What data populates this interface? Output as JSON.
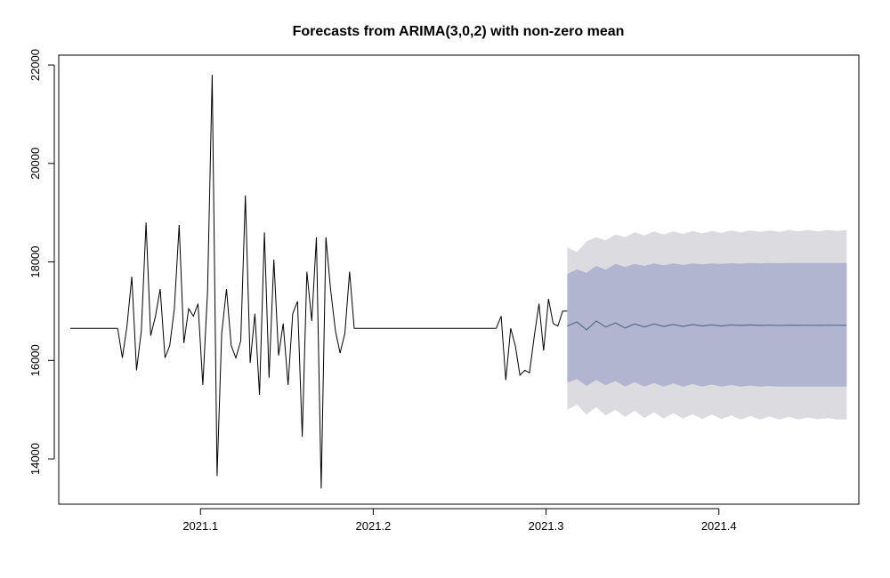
{
  "chart_data": {
    "type": "line",
    "title": "Forecasts from ARIMA(3,0,2) with non-zero mean",
    "xlabel": "",
    "ylabel": "",
    "xlim": [
      2021.018,
      2021.481
    ],
    "ylim": [
      13080,
      22200
    ],
    "x_ticks": [
      2021.1,
      2021.2,
      2021.3,
      2021.4
    ],
    "x_tick_labels": [
      "2021.1",
      "2021.2",
      "2021.3",
      "2021.4"
    ],
    "y_ticks": [
      14000,
      16000,
      18000,
      20000,
      22000
    ],
    "y_tick_labels": [
      "14000",
      "16000",
      "18000",
      "20000",
      "22000"
    ],
    "grid": false,
    "legend": "none",
    "colors": {
      "observed": "#000000",
      "forecast_mean": "#5b6c8f",
      "band_80": "#b1b5cf",
      "band_95": "#dcdce0",
      "frame": "#000000"
    },
    "series": [
      {
        "role": "observed",
        "segments": [
          {
            "x": [
              2021.0247,
              2021.0274,
              2021.0301,
              2021.0329,
              2021.0356,
              2021.0384,
              2021.0411,
              2021.0438,
              2021.0466,
              2021.0493,
              2021.0521,
              2021.0548,
              2021.0575,
              2021.0603,
              2021.063,
              2021.0658,
              2021.0685,
              2021.0712,
              2021.074,
              2021.0767,
              2021.0795,
              2021.0822,
              2021.0849,
              2021.0877,
              2021.0904,
              2021.0932,
              2021.0959,
              2021.0986,
              2021.1014,
              2021.1041,
              2021.1068,
              2021.1096,
              2021.1123,
              2021.1151,
              2021.1178,
              2021.1205,
              2021.1233,
              2021.126,
              2021.1288,
              2021.1315,
              2021.1342,
              2021.137,
              2021.1397,
              2021.1425,
              2021.1452,
              2021.1479,
              2021.1507,
              2021.1534,
              2021.1562,
              2021.1589,
              2021.1616,
              2021.1644,
              2021.1671,
              2021.1699,
              2021.1726,
              2021.1753,
              2021.1781,
              2021.1808,
              2021.1836,
              2021.1863,
              2021.189,
              2021.1918,
              2021.1945,
              2021.1973,
              2021.2,
              2021.2027,
              2021.2055,
              2021.2082,
              2021.211,
              2021.2137,
              2021.2164,
              2021.2192,
              2021.2219,
              2021.2247,
              2021.2274,
              2021.2301,
              2021.2329,
              2021.2356,
              2021.2384,
              2021.2411,
              2021.2438,
              2021.2466,
              2021.2493,
              2021.2521,
              2021.2548,
              2021.2575,
              2021.2603,
              2021.263,
              2021.2658,
              2021.2685
            ],
            "y": [
              16650,
              16650,
              16650,
              16650,
              16650,
              16650,
              16650,
              16650,
              16650,
              16650,
              16650,
              16650,
              16650,
              16650,
              16650,
              16650,
              16650,
              16650,
              16650,
              16650,
              16650,
              16650,
              16650,
              16650,
              16650,
              16650,
              16650,
              16650,
              16650,
              16650,
              16650,
              16650,
              16650,
              16650,
              16650,
              16650,
              16650,
              16650,
              16650,
              16650,
              16650,
              16650,
              16650,
              16650,
              16650,
              16650,
              16650,
              16650,
              16650,
              16650,
              16650,
              16650,
              16650,
              16650,
              16650,
              16650,
              16650,
              16650,
              16650,
              16650,
              16650,
              16650,
              16650,
              16650,
              16650,
              16650,
              16650,
              16650,
              16650,
              16650,
              16650,
              16650,
              16650,
              16650,
              16650,
              16650,
              16650,
              16650,
              16650,
              16650,
              16650,
              16650,
              16650,
              16650,
              16650,
              16650,
              16650,
              16650,
              16650,
              16650
            ]
          },
          {
            "x": [
              2021.0521,
              2021.0548,
              2021.0575,
              2021.0603,
              2021.063,
              2021.0658,
              2021.0685,
              2021.0712,
              2021.074,
              2021.0767,
              2021.0795,
              2021.0822,
              2021.0849,
              2021.0877,
              2021.0904,
              2021.0932,
              2021.0959,
              2021.0986,
              2021.1014,
              2021.1041,
              2021.1068,
              2021.1096,
              2021.1123,
              2021.1151,
              2021.1178,
              2021.1205,
              2021.1233,
              2021.126,
              2021.1288,
              2021.1315,
              2021.1342,
              2021.137,
              2021.1397,
              2021.1425,
              2021.1452,
              2021.1479,
              2021.1507,
              2021.1534,
              2021.1562,
              2021.1589,
              2021.1616,
              2021.1644,
              2021.1671,
              2021.1699,
              2021.1726,
              2021.1753,
              2021.1781,
              2021.1808,
              2021.1836,
              2021.1863
            ],
            "y": [
              16650,
              16050,
              16700,
              17700,
              15800,
              16600,
              18800,
              16500,
              16900,
              17450,
              16050,
              16300,
              17050,
              18750,
              16350,
              17050,
              16900,
              17150,
              15500,
              17400,
              21800,
              13650,
              16550,
              17450,
              16300,
              16050,
              16400,
              19350,
              15950,
              16950,
              15300,
              18600,
              15650,
              18050,
              16100,
              16750,
              15500,
              16950,
              17200,
              14450,
              17800,
              16800,
              18500,
              13400,
              18500,
              17450,
              16600,
              16150,
              16550,
              17800
            ]
          },
          {
            "x": [
              2021.2712,
              2021.274,
              2021.2767,
              2021.2795,
              2021.2822,
              2021.2849,
              2021.2877,
              2021.2904,
              2021.2932,
              2021.2959,
              2021.2986,
              2021.3014,
              2021.3041,
              2021.3068,
              2021.3096,
              2021.3123
            ],
            "y": [
              16650,
              16900,
              15600,
              16650,
              16300,
              15700,
              15800,
              15750,
              16500,
              17150,
              16200,
              17250,
              16750,
              16700,
              17000,
              17000
            ]
          }
        ]
      },
      {
        "role": "forecast_mean",
        "x_start": 2021.3123,
        "x_end": 2021.474,
        "y": [
          16700,
          16780,
          16620,
          16800,
          16680,
          16760,
          16660,
          16740,
          16680,
          16740,
          16690,
          16730,
          16690,
          16730,
          16700,
          16720,
          16700,
          16720,
          16710,
          16720,
          16710,
          16715,
          16710,
          16715,
          16712,
          16714,
          16712,
          16714,
          16713,
          16713
        ]
      },
      {
        "role": "band_80",
        "x_start": 2021.3123,
        "x_end": 2021.474,
        "lower": [
          15550,
          15620,
          15480,
          15600,
          15500,
          15580,
          15470,
          15560,
          15470,
          15540,
          15470,
          15530,
          15470,
          15520,
          15470,
          15510,
          15470,
          15500,
          15470,
          15490,
          15470,
          15480,
          15470,
          15470,
          15470,
          15470,
          15470,
          15470,
          15470,
          15470
        ],
        "upper": [
          17750,
          17850,
          17780,
          17920,
          17840,
          17960,
          17900,
          17960,
          17920,
          17970,
          17930,
          17970,
          17940,
          17970,
          17950,
          17970,
          17960,
          17975,
          17965,
          17980,
          17970,
          17980,
          17975,
          17980,
          17980,
          17980,
          17980,
          17980,
          17980,
          17980
        ]
      },
      {
        "role": "band_95",
        "x_start": 2021.3123,
        "x_end": 2021.474,
        "lower": [
          15000,
          15100,
          14900,
          15050,
          14880,
          15000,
          14850,
          14980,
          14830,
          14950,
          14820,
          14930,
          14820,
          14910,
          14810,
          14900,
          14810,
          14880,
          14800,
          14870,
          14800,
          14860,
          14800,
          14850,
          14800,
          14840,
          14800,
          14830,
          14800,
          14800
        ],
        "upper": [
          18300,
          18200,
          18420,
          18500,
          18440,
          18560,
          18500,
          18600,
          18540,
          18620,
          18560,
          18620,
          18570,
          18630,
          18580,
          18630,
          18590,
          18640,
          18600,
          18640,
          18610,
          18640,
          18610,
          18650,
          18620,
          18650,
          18620,
          18650,
          18630,
          18650
        ]
      }
    ]
  }
}
